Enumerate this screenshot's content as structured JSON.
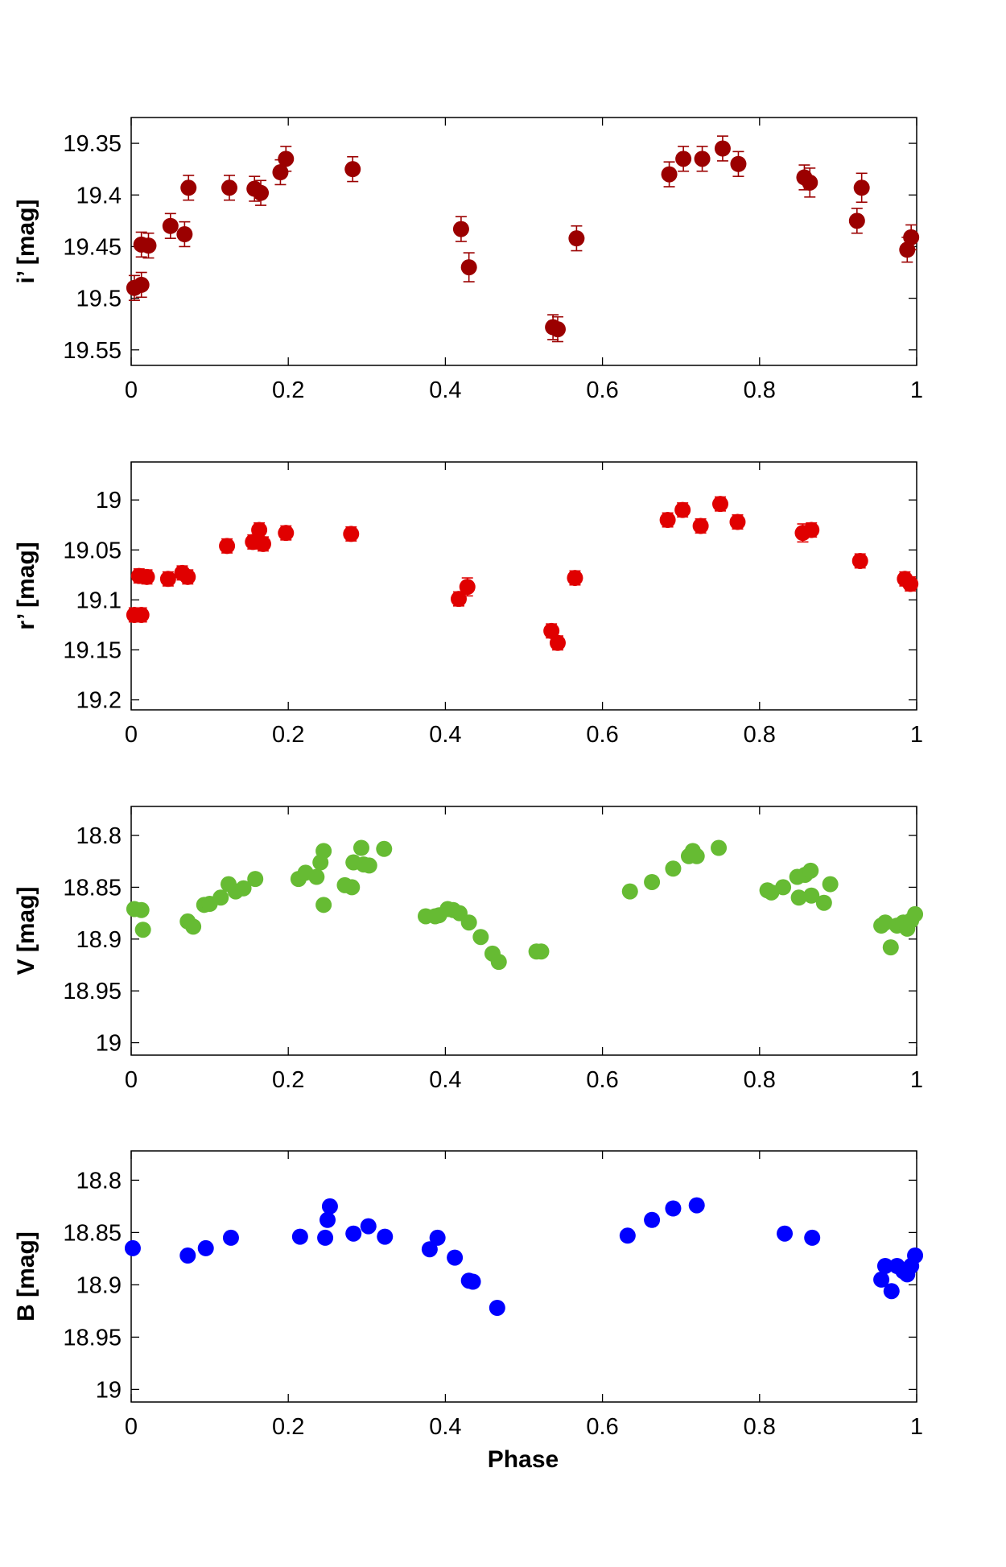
{
  "figure": {
    "xlabel": "Phase"
  },
  "chart_data": [
    {
      "type": "scatter",
      "title": "",
      "xlabel": "",
      "ylabel": "i’ [mag]",
      "xlim": [
        0,
        1
      ],
      "ylim": [
        19.325,
        19.565
      ],
      "y_inverted": true,
      "grid": false,
      "xticks": [
        0,
        0.2,
        0.4,
        0.6,
        0.8,
        1
      ],
      "xtick_labels": [
        "0",
        "0.2",
        "0.4",
        "0.6",
        "0.8",
        "1"
      ],
      "yticks": [
        19.35,
        19.4,
        19.45,
        19.5,
        19.55
      ],
      "ytick_labels": [
        "19.35",
        "19.4",
        "19.45",
        "19.5",
        "19.55"
      ],
      "color": "#9b0000",
      "error_bars": true,
      "series": [
        {
          "name": "i'",
          "points": [
            {
              "x": 0.004,
              "y": 19.49,
              "err": 0.012
            },
            {
              "x": 0.013,
              "y": 19.487,
              "err": 0.012
            },
            {
              "x": 0.013,
              "y": 19.448,
              "err": 0.012
            },
            {
              "x": 0.022,
              "y": 19.449,
              "err": 0.012
            },
            {
              "x": 0.05,
              "y": 19.43,
              "err": 0.012
            },
            {
              "x": 0.068,
              "y": 19.438,
              "err": 0.012
            },
            {
              "x": 0.073,
              "y": 19.393,
              "err": 0.012
            },
            {
              "x": 0.125,
              "y": 19.393,
              "err": 0.012
            },
            {
              "x": 0.157,
              "y": 19.394,
              "err": 0.012
            },
            {
              "x": 0.165,
              "y": 19.398,
              "err": 0.012
            },
            {
              "x": 0.19,
              "y": 19.378,
              "err": 0.012
            },
            {
              "x": 0.197,
              "y": 19.365,
              "err": 0.012
            },
            {
              "x": 0.282,
              "y": 19.375,
              "err": 0.012
            },
            {
              "x": 0.42,
              "y": 19.433,
              "err": 0.012
            },
            {
              "x": 0.43,
              "y": 19.47,
              "err": 0.014
            },
            {
              "x": 0.537,
              "y": 19.528,
              "err": 0.012
            },
            {
              "x": 0.543,
              "y": 19.53,
              "err": 0.012
            },
            {
              "x": 0.567,
              "y": 19.442,
              "err": 0.012
            },
            {
              "x": 0.685,
              "y": 19.38,
              "err": 0.012
            },
            {
              "x": 0.703,
              "y": 19.365,
              "err": 0.012
            },
            {
              "x": 0.727,
              "y": 19.365,
              "err": 0.012
            },
            {
              "x": 0.753,
              "y": 19.355,
              "err": 0.012
            },
            {
              "x": 0.773,
              "y": 19.37,
              "err": 0.012
            },
            {
              "x": 0.857,
              "y": 19.383,
              "err": 0.012
            },
            {
              "x": 0.864,
              "y": 19.388,
              "err": 0.014
            },
            {
              "x": 0.924,
              "y": 19.425,
              "err": 0.012
            },
            {
              "x": 0.93,
              "y": 19.393,
              "err": 0.014
            },
            {
              "x": 0.988,
              "y": 19.453,
              "err": 0.012
            },
            {
              "x": 0.993,
              "y": 19.441,
              "err": 0.012
            }
          ]
        }
      ]
    },
    {
      "type": "scatter",
      "title": "",
      "xlabel": "",
      "ylabel": "r’ [mag]",
      "xlim": [
        0,
        1
      ],
      "ylim": [
        18.962,
        19.21
      ],
      "y_inverted": true,
      "grid": false,
      "xticks": [
        0,
        0.2,
        0.4,
        0.6,
        0.8,
        1
      ],
      "xtick_labels": [
        "0",
        "0.2",
        "0.4",
        "0.6",
        "0.8",
        "1"
      ],
      "yticks": [
        19.0,
        19.05,
        19.1,
        19.15,
        19.2
      ],
      "ytick_labels": [
        "19",
        "19.05",
        "19.1",
        "19.15",
        "19.2"
      ],
      "color": "#e00000",
      "error_bars": true,
      "series": [
        {
          "name": "r'",
          "points": [
            {
              "x": 0.004,
              "y": 19.115,
              "err": 0.007
            },
            {
              "x": 0.013,
              "y": 19.115,
              "err": 0.007
            },
            {
              "x": 0.01,
              "y": 19.076,
              "err": 0.007
            },
            {
              "x": 0.02,
              "y": 19.077,
              "err": 0.007
            },
            {
              "x": 0.047,
              "y": 19.079,
              "err": 0.007
            },
            {
              "x": 0.065,
              "y": 19.073,
              "err": 0.007
            },
            {
              "x": 0.072,
              "y": 19.077,
              "err": 0.007
            },
            {
              "x": 0.122,
              "y": 19.046,
              "err": 0.007
            },
            {
              "x": 0.155,
              "y": 19.042,
              "err": 0.007
            },
            {
              "x": 0.163,
              "y": 19.03,
              "err": 0.007
            },
            {
              "x": 0.168,
              "y": 19.044,
              "err": 0.007
            },
            {
              "x": 0.197,
              "y": 19.033,
              "err": 0.007
            },
            {
              "x": 0.28,
              "y": 19.034,
              "err": 0.007
            },
            {
              "x": 0.417,
              "y": 19.099,
              "err": 0.007
            },
            {
              "x": 0.428,
              "y": 19.087,
              "err": 0.009
            },
            {
              "x": 0.535,
              "y": 19.131,
              "err": 0.007
            },
            {
              "x": 0.543,
              "y": 19.143,
              "err": 0.007
            },
            {
              "x": 0.565,
              "y": 19.078,
              "err": 0.007
            },
            {
              "x": 0.683,
              "y": 19.02,
              "err": 0.007
            },
            {
              "x": 0.702,
              "y": 19.01,
              "err": 0.007
            },
            {
              "x": 0.725,
              "y": 19.026,
              "err": 0.007
            },
            {
              "x": 0.75,
              "y": 19.004,
              "err": 0.007
            },
            {
              "x": 0.772,
              "y": 19.022,
              "err": 0.007
            },
            {
              "x": 0.855,
              "y": 19.033,
              "err": 0.009
            },
            {
              "x": 0.866,
              "y": 19.03,
              "err": 0.007
            },
            {
              "x": 0.928,
              "y": 19.061,
              "err": 0.007
            },
            {
              "x": 0.985,
              "y": 19.079,
              "err": 0.007
            },
            {
              "x": 0.992,
              "y": 19.084,
              "err": 0.007
            }
          ]
        }
      ]
    },
    {
      "type": "scatter",
      "title": "",
      "xlabel": "",
      "ylabel": "V [mag]",
      "xlim": [
        0,
        1
      ],
      "ylim": [
        18.772,
        19.012
      ],
      "y_inverted": true,
      "grid": false,
      "xticks": [
        0,
        0.2,
        0.4,
        0.6,
        0.8,
        1
      ],
      "xtick_labels": [
        "0",
        "0.2",
        "0.4",
        "0.6",
        "0.8",
        "1"
      ],
      "yticks": [
        18.8,
        18.85,
        18.9,
        18.95,
        19.0
      ],
      "ytick_labels": [
        "18.8",
        "18.85",
        "18.9",
        "18.95",
        "19"
      ],
      "color": "#66bb33",
      "error_bars": false,
      "series": [
        {
          "name": "V",
          "points": [
            {
              "x": 0.004,
              "y": 18.871
            },
            {
              "x": 0.013,
              "y": 18.872
            },
            {
              "x": 0.015,
              "y": 18.891
            },
            {
              "x": 0.072,
              "y": 18.883
            },
            {
              "x": 0.079,
              "y": 18.888
            },
            {
              "x": 0.093,
              "y": 18.867
            },
            {
              "x": 0.1,
              "y": 18.866
            },
            {
              "x": 0.114,
              "y": 18.86
            },
            {
              "x": 0.124,
              "y": 18.847
            },
            {
              "x": 0.133,
              "y": 18.854
            },
            {
              "x": 0.143,
              "y": 18.851
            },
            {
              "x": 0.158,
              "y": 18.842
            },
            {
              "x": 0.213,
              "y": 18.842
            },
            {
              "x": 0.222,
              "y": 18.836
            },
            {
              "x": 0.236,
              "y": 18.84
            },
            {
              "x": 0.241,
              "y": 18.826
            },
            {
              "x": 0.245,
              "y": 18.815
            },
            {
              "x": 0.245,
              "y": 18.867
            },
            {
              "x": 0.272,
              "y": 18.848
            },
            {
              "x": 0.281,
              "y": 18.85
            },
            {
              "x": 0.283,
              "y": 18.826
            },
            {
              "x": 0.293,
              "y": 18.812
            },
            {
              "x": 0.296,
              "y": 18.828
            },
            {
              "x": 0.303,
              "y": 18.829
            },
            {
              "x": 0.322,
              "y": 18.813
            },
            {
              "x": 0.375,
              "y": 18.878
            },
            {
              "x": 0.387,
              "y": 18.878
            },
            {
              "x": 0.392,
              "y": 18.877
            },
            {
              "x": 0.403,
              "y": 18.871
            },
            {
              "x": 0.41,
              "y": 18.872
            },
            {
              "x": 0.418,
              "y": 18.875
            },
            {
              "x": 0.43,
              "y": 18.884
            },
            {
              "x": 0.445,
              "y": 18.898
            },
            {
              "x": 0.46,
              "y": 18.914
            },
            {
              "x": 0.468,
              "y": 18.922
            },
            {
              "x": 0.516,
              "y": 18.912
            },
            {
              "x": 0.522,
              "y": 18.912
            },
            {
              "x": 0.635,
              "y": 18.854
            },
            {
              "x": 0.663,
              "y": 18.845
            },
            {
              "x": 0.69,
              "y": 18.832
            },
            {
              "x": 0.71,
              "y": 18.82
            },
            {
              "x": 0.715,
              "y": 18.815
            },
            {
              "x": 0.72,
              "y": 18.82
            },
            {
              "x": 0.748,
              "y": 18.812
            },
            {
              "x": 0.81,
              "y": 18.853
            },
            {
              "x": 0.815,
              "y": 18.855
            },
            {
              "x": 0.83,
              "y": 18.85
            },
            {
              "x": 0.848,
              "y": 18.84
            },
            {
              "x": 0.85,
              "y": 18.86
            },
            {
              "x": 0.858,
              "y": 18.838
            },
            {
              "x": 0.865,
              "y": 18.834
            },
            {
              "x": 0.866,
              "y": 18.858
            },
            {
              "x": 0.882,
              "y": 18.865
            },
            {
              "x": 0.89,
              "y": 18.847
            },
            {
              "x": 0.955,
              "y": 18.887
            },
            {
              "x": 0.96,
              "y": 18.884
            },
            {
              "x": 0.967,
              "y": 18.908
            },
            {
              "x": 0.975,
              "y": 18.887
            },
            {
              "x": 0.983,
              "y": 18.884
            },
            {
              "x": 0.988,
              "y": 18.89
            },
            {
              "x": 0.993,
              "y": 18.882
            },
            {
              "x": 0.998,
              "y": 18.876
            }
          ]
        }
      ]
    },
    {
      "type": "scatter",
      "title": "",
      "xlabel": "Phase",
      "ylabel": "B [mag]",
      "xlim": [
        0,
        1
      ],
      "ylim": [
        18.772,
        19.012
      ],
      "y_inverted": true,
      "grid": false,
      "xticks": [
        0,
        0.2,
        0.4,
        0.6,
        0.8,
        1
      ],
      "xtick_labels": [
        "0",
        "0.2",
        "0.4",
        "0.6",
        "0.8",
        "1"
      ],
      "yticks": [
        18.8,
        18.85,
        18.9,
        18.95,
        19.0
      ],
      "ytick_labels": [
        "18.8",
        "18.85",
        "18.9",
        "18.95",
        "19"
      ],
      "color": "#0000ff",
      "error_bars": false,
      "series": [
        {
          "name": "B",
          "points": [
            {
              "x": 0.002,
              "y": 18.865
            },
            {
              "x": 0.072,
              "y": 18.872
            },
            {
              "x": 0.095,
              "y": 18.865
            },
            {
              "x": 0.127,
              "y": 18.855
            },
            {
              "x": 0.215,
              "y": 18.854
            },
            {
              "x": 0.247,
              "y": 18.855
            },
            {
              "x": 0.25,
              "y": 18.838
            },
            {
              "x": 0.253,
              "y": 18.825
            },
            {
              "x": 0.283,
              "y": 18.851
            },
            {
              "x": 0.302,
              "y": 18.844
            },
            {
              "x": 0.323,
              "y": 18.854
            },
            {
              "x": 0.38,
              "y": 18.866
            },
            {
              "x": 0.39,
              "y": 18.855
            },
            {
              "x": 0.412,
              "y": 18.874
            },
            {
              "x": 0.43,
              "y": 18.896
            },
            {
              "x": 0.435,
              "y": 18.897
            },
            {
              "x": 0.466,
              "y": 18.922
            },
            {
              "x": 0.632,
              "y": 18.853
            },
            {
              "x": 0.663,
              "y": 18.838
            },
            {
              "x": 0.69,
              "y": 18.827
            },
            {
              "x": 0.72,
              "y": 18.824
            },
            {
              "x": 0.832,
              "y": 18.851
            },
            {
              "x": 0.867,
              "y": 18.855
            },
            {
              "x": 0.955,
              "y": 18.895
            },
            {
              "x": 0.96,
              "y": 18.882
            },
            {
              "x": 0.968,
              "y": 18.906
            },
            {
              "x": 0.975,
              "y": 18.882
            },
            {
              "x": 0.983,
              "y": 18.887
            },
            {
              "x": 0.988,
              "y": 18.89
            },
            {
              "x": 0.993,
              "y": 18.882
            },
            {
              "x": 0.998,
              "y": 18.872
            }
          ]
        }
      ]
    }
  ]
}
